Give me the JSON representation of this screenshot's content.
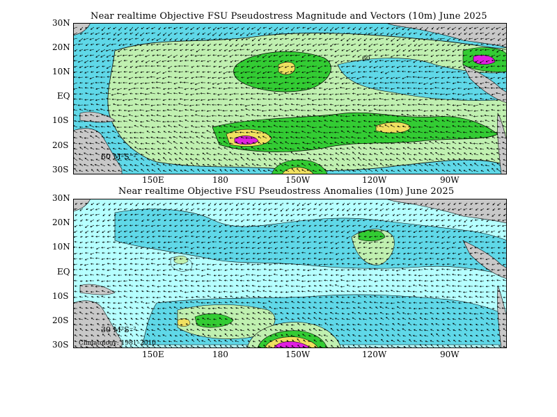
{
  "colors": {
    "ocean_low": "#5fd8e8",
    "ocean_lighter": "#b6ffff",
    "level_light_green": "#c0f0b0",
    "level_green": "#33cc33",
    "level_yellow": "#f0e060",
    "level_magenta": "#e020e0",
    "land": "#c8c8c8",
    "arrow": "#000000"
  },
  "top_panel": {
    "title": "Near realtime Objective FSU Pseudostress Magnitude and Vectors (10m) June 2025",
    "lat_labels": [
      "30N",
      "20N",
      "10N",
      "EQ",
      "10S",
      "20S",
      "30S"
    ],
    "lon_labels": [
      "150E",
      "180",
      "150W",
      "120W",
      "90W"
    ],
    "reference_vector": "60 M²S⁻²",
    "contour_label": "60"
  },
  "bottom_panel": {
    "title": "Near realtime Objective FSU Pseudostress Anomalies (10m) June 2025",
    "lat_labels": [
      "30N",
      "20N",
      "10N",
      "EQ",
      "10S",
      "20S",
      "30S"
    ],
    "lon_labels": [
      "150E",
      "180",
      "150W",
      "120W",
      "90W"
    ],
    "reference_vector": "30 M²S⁻²",
    "climatology": "Climatology: 1981–2010"
  }
}
